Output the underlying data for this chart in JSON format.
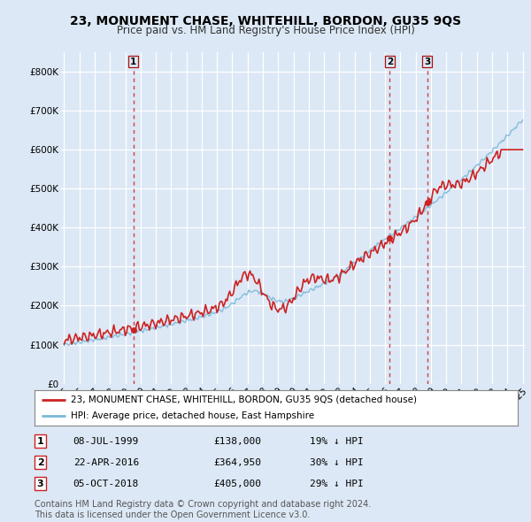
{
  "title": "23, MONUMENT CHASE, WHITEHILL, BORDON, GU35 9QS",
  "subtitle": "Price paid vs. HM Land Registry's House Price Index (HPI)",
  "title_fontsize": 10,
  "subtitle_fontsize": 8.5,
  "ylim": [
    0,
    850000
  ],
  "yticks": [
    0,
    100000,
    200000,
    300000,
    400000,
    500000,
    600000,
    700000,
    800000
  ],
  "ytick_labels": [
    "£0",
    "£100K",
    "£200K",
    "£300K",
    "£400K",
    "£500K",
    "£600K",
    "£700K",
    "£800K"
  ],
  "hpi_color": "#7ab8d9",
  "property_color": "#cc2222",
  "vline_color": "#cc2222",
  "background_color": "#dce8f5",
  "plot_bg_color": "#dce8f5",
  "grid_color": "#ffffff",
  "legend_label_property": "23, MONUMENT CHASE, WHITEHILL, BORDON, GU35 9QS (detached house)",
  "legend_label_hpi": "HPI: Average price, detached house, East Hampshire",
  "transactions": [
    {
      "num": 1,
      "date": "08-JUL-1999",
      "price": 138000,
      "pct": "19%",
      "direction": "↓",
      "year": 1999.54
    },
    {
      "num": 2,
      "date": "22-APR-2016",
      "price": 364950,
      "pct": "30%",
      "direction": "↓",
      "year": 2016.31
    },
    {
      "num": 3,
      "date": "05-OCT-2018",
      "price": 405000,
      "pct": "29%",
      "direction": "↓",
      "year": 2018.76
    }
  ],
  "footnote": "Contains HM Land Registry data © Crown copyright and database right 2024.\nThis data is licensed under the Open Government Licence v3.0.",
  "footnote_fontsize": 7
}
